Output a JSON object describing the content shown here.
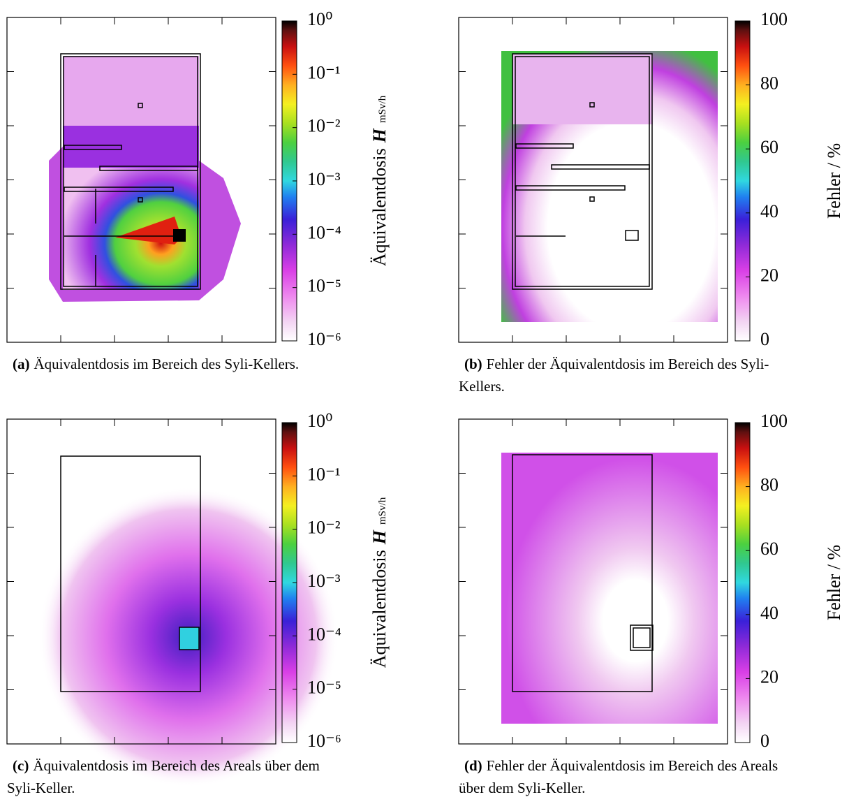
{
  "figure": {
    "panels": [
      {
        "id": "(a)",
        "caption": [
          "Äquivalentdosis im Bereich des Syli-Kellers."
        ],
        "colorbar": {
          "label": "Äquivalentdosis",
          "symbol": "H",
          "unit": "mSv/h",
          "log": true,
          "clim": [
            1e-06,
            1
          ],
          "ticks": [
            {
              "value": 1,
              "label": "10⁰"
            },
            {
              "value": 0.1,
              "label": "10⁻¹"
            },
            {
              "value": 0.01,
              "label": "10⁻²"
            },
            {
              "value": 0.001,
              "label": "10⁻³"
            },
            {
              "value": 0.0001,
              "label": "10⁻⁴"
            },
            {
              "value": 1e-05,
              "label": "10⁻⁵"
            },
            {
              "value": 1e-06,
              "label": "10⁻⁶"
            }
          ]
        }
      },
      {
        "id": "(b)",
        "caption": [
          "Fehler der Äquivalentdosis im Bereich des Syli-",
          "Kellers."
        ],
        "colorbar": {
          "label": "Fehler / %",
          "log": false,
          "clim": [
            0,
            100
          ],
          "ticks": [
            100,
            80,
            60,
            40,
            20,
            0
          ]
        }
      },
      {
        "id": "(c)",
        "caption": [
          "Äquivalentdosis im Bereich des Areals über dem",
          "Syli-Keller."
        ],
        "colorbar": {
          "label": "Äquivalentdosis",
          "symbol": "H",
          "unit": "mSv/h",
          "log": true,
          "clim": [
            1e-06,
            1
          ],
          "ticks": [
            {
              "value": 1,
              "label": "10⁰"
            },
            {
              "value": 0.1,
              "label": "10⁻¹"
            },
            {
              "value": 0.01,
              "label": "10⁻²"
            },
            {
              "value": 0.001,
              "label": "10⁻³"
            },
            {
              "value": 0.0001,
              "label": "10⁻⁴"
            },
            {
              "value": 1e-05,
              "label": "10⁻⁵"
            },
            {
              "value": 1e-06,
              "label": "10⁻⁶"
            }
          ]
        }
      },
      {
        "id": "(d)",
        "caption": [
          "Fehler der Äquivalentdosis im Bereich des Areals",
          "über dem Syli-Keller."
        ],
        "colorbar": {
          "label": "Fehler / %",
          "log": false,
          "clim": [
            0,
            100
          ],
          "ticks": [
            100,
            80,
            60,
            40,
            20,
            0
          ]
        }
      }
    ]
  }
}
